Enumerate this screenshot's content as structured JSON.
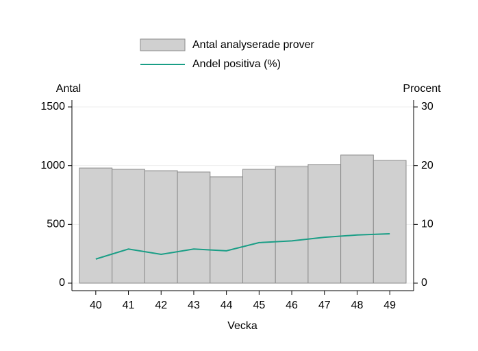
{
  "chart_data": {
    "type": "bar-line",
    "xlabel": "Vecka",
    "ylabel": "Antal",
    "y2label": "Procent",
    "categories": [
      "40",
      "41",
      "42",
      "43",
      "44",
      "45",
      "46",
      "47",
      "48",
      "49"
    ],
    "series": [
      {
        "name": "Antal analyserade prover",
        "type": "bar",
        "color": "#d0d0d0",
        "values": [
          980,
          969,
          957,
          946,
          905,
          969,
          992,
          1010,
          1091,
          1045
        ]
      },
      {
        "name": "Andel positiva (%)",
        "type": "line",
        "axis": "y2",
        "color": "#1a9e86",
        "values": [
          4.1,
          5.8,
          4.9,
          5.8,
          5.5,
          6.9,
          7.2,
          7.8,
          8.2,
          8.4
        ]
      }
    ],
    "ylim": [
      0,
      1500
    ],
    "yticks": [
      0,
      500,
      1000,
      1500
    ],
    "y2lim": [
      0,
      30
    ],
    "y2ticks": [
      0,
      10,
      20,
      30
    ],
    "grid": true
  }
}
